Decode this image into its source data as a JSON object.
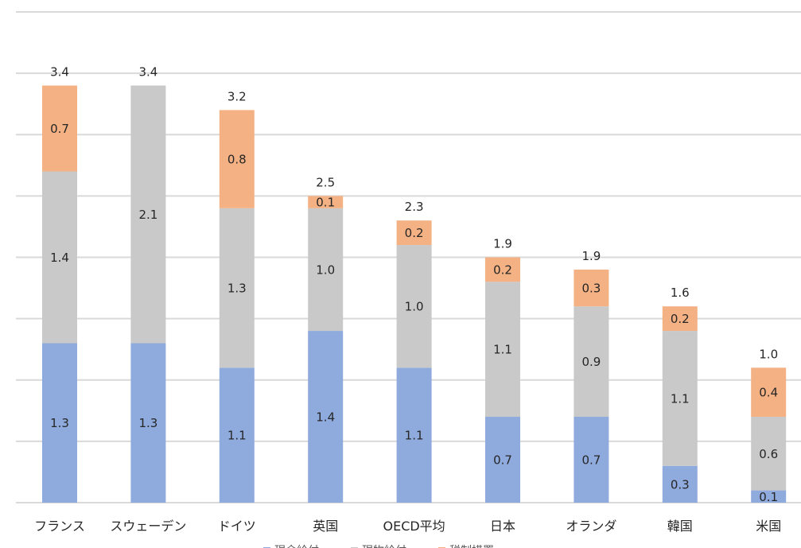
{
  "chart_data": {
    "type": "bar",
    "stacked": true,
    "title": "",
    "xlabel": "",
    "ylabel": "",
    "ylim": [
      0,
      4.0
    ],
    "ytick_step": 0.5,
    "y_tick_labels_shown": false,
    "grid": true,
    "legend_position": "bottom",
    "categories": [
      "フランス",
      "スウェーデン",
      "ドイツ",
      "英国",
      "OECD平均",
      "日本",
      "オランダ",
      "韓国",
      "米国"
    ],
    "series": [
      {
        "name": "現金給付",
        "color": "#8faadc",
        "values": [
          1.3,
          1.3,
          1.1,
          1.4,
          1.1,
          0.7,
          0.7,
          0.3,
          0.1
        ]
      },
      {
        "name": "現物給付",
        "color": "#c9c9c9",
        "values": [
          1.4,
          2.1,
          1.3,
          1.0,
          1.0,
          1.1,
          0.9,
          1.1,
          0.6
        ]
      },
      {
        "name": "税制措置",
        "color": "#f4b183",
        "values": [
          0.7,
          0.0,
          0.8,
          0.1,
          0.2,
          0.2,
          0.3,
          0.2,
          0.4
        ]
      }
    ],
    "segment_labels": [
      [
        "1.3",
        "1.3",
        "1.1",
        "1.4",
        "1.1",
        "0.7",
        "0.7",
        "0.3",
        "0.1"
      ],
      [
        "1.4",
        "2.1",
        "1.3",
        "1.0",
        "1.0",
        "1.1",
        "0.9",
        "1.1",
        "0.6"
      ],
      [
        "0.7",
        "",
        "0.8",
        "0.1",
        "0.2",
        "0.2",
        "0.3",
        "0.2",
        "0.4"
      ]
    ],
    "totals": [
      "3.4",
      "3.4",
      "3.2",
      "2.5",
      "2.3",
      "1.9",
      "1.9",
      "1.6",
      "1.0"
    ],
    "total_values": [
      3.4,
      3.4,
      3.2,
      2.5,
      2.3,
      1.9,
      1.9,
      1.6,
      1.0
    ]
  }
}
